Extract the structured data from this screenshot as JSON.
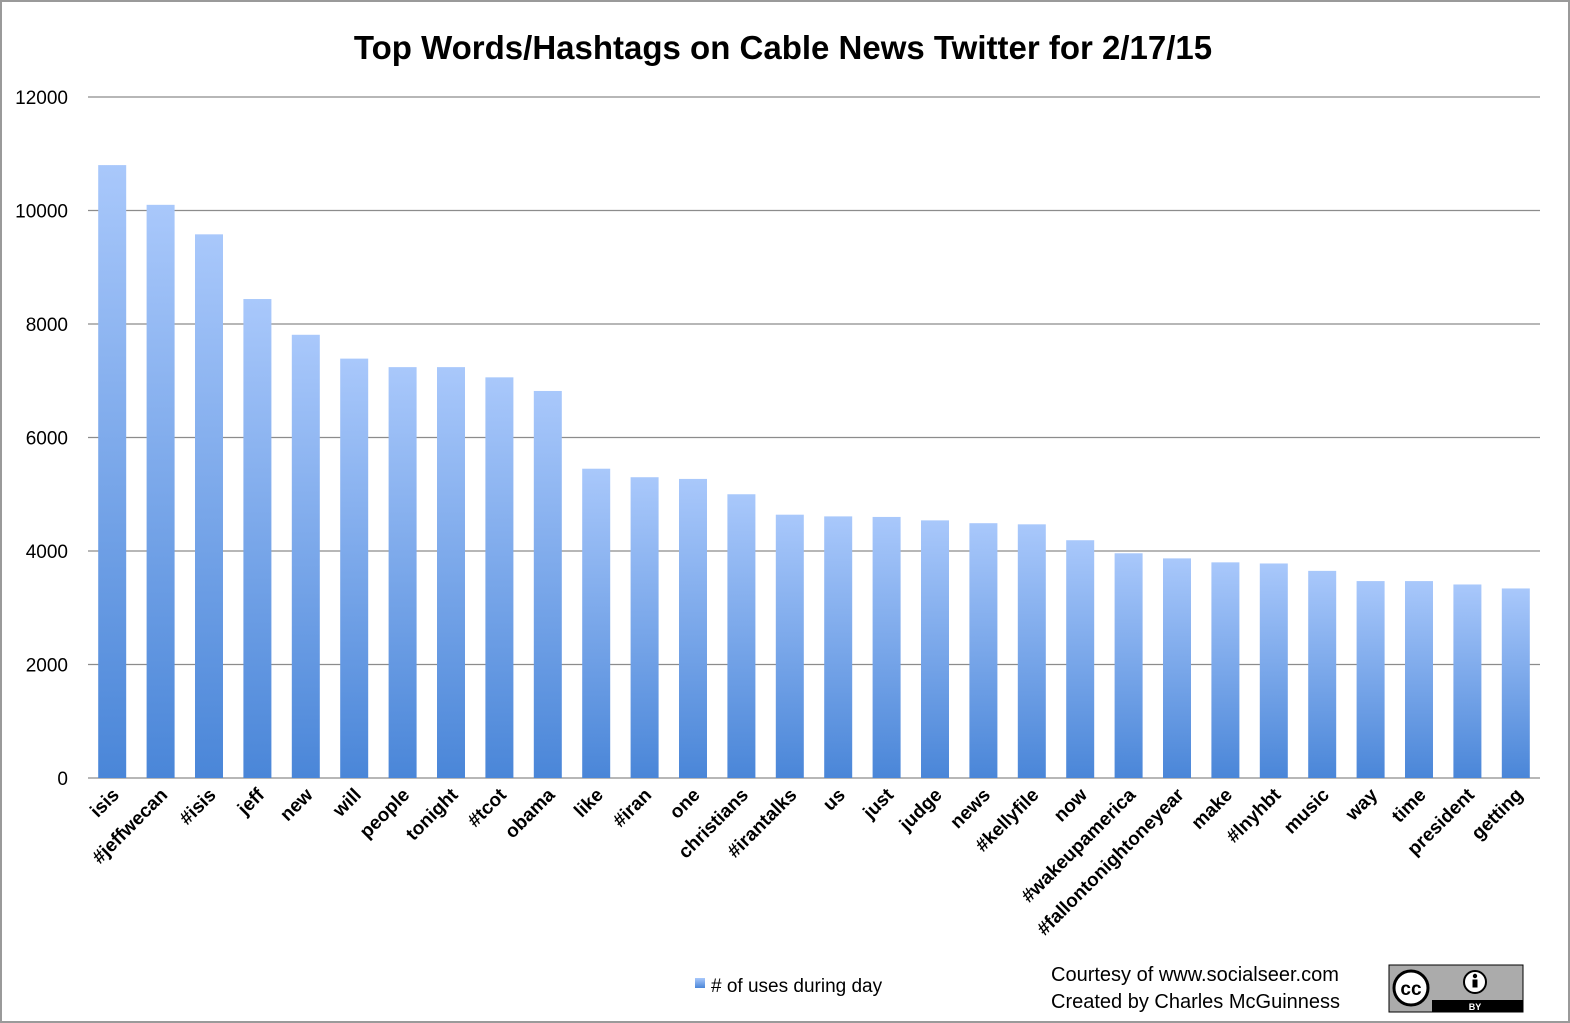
{
  "chart_data": {
    "type": "bar",
    "title": "Top Words/Hashtags on Cable News Twitter for 2/17/15",
    "xlabel": "",
    "ylabel": "",
    "ylim": [
      0,
      12000
    ],
    "yticks": [
      0,
      2000,
      4000,
      6000,
      8000,
      10000,
      12000
    ],
    "grid": true,
    "legend_position": "bottom",
    "categories": [
      "isis",
      "#jeffwecan",
      "#isis",
      "jeff",
      "new",
      "will",
      "people",
      "tonight",
      "#tcot",
      "obama",
      "like",
      "#iran",
      "one",
      "christians",
      "#irantalks",
      "us",
      "just",
      "judge",
      "news",
      "#kellyfile",
      "now",
      "#wakeupamerica",
      "#fallontonightoneyear",
      "make",
      "#lnyhbt",
      "music",
      "way",
      "time",
      "president",
      "getting"
    ],
    "series": [
      {
        "name": "# of uses during day",
        "color_top": "#a9c8fb",
        "color_bottom": "#4a86d8",
        "values": [
          10800,
          10100,
          9580,
          8440,
          7810,
          7390,
          7240,
          7240,
          7060,
          6820,
          5450,
          5300,
          5270,
          5000,
          4640,
          4610,
          4600,
          4540,
          4490,
          4470,
          4190,
          3960,
          3870,
          3800,
          3780,
          3650,
          3470,
          3470,
          3410,
          3340
        ]
      }
    ]
  },
  "credits": {
    "line1": "Courtesy of www.socialseer.com",
    "line2": "Created by Charles McGuinness"
  },
  "license_badge": {
    "icon": "cc-by-icon",
    "text_cc": "cc",
    "text_by": "BY"
  },
  "colors": {
    "gridline": "#8c8c8c",
    "axis": "#8c8c8c",
    "border": "#9a9a9a"
  }
}
